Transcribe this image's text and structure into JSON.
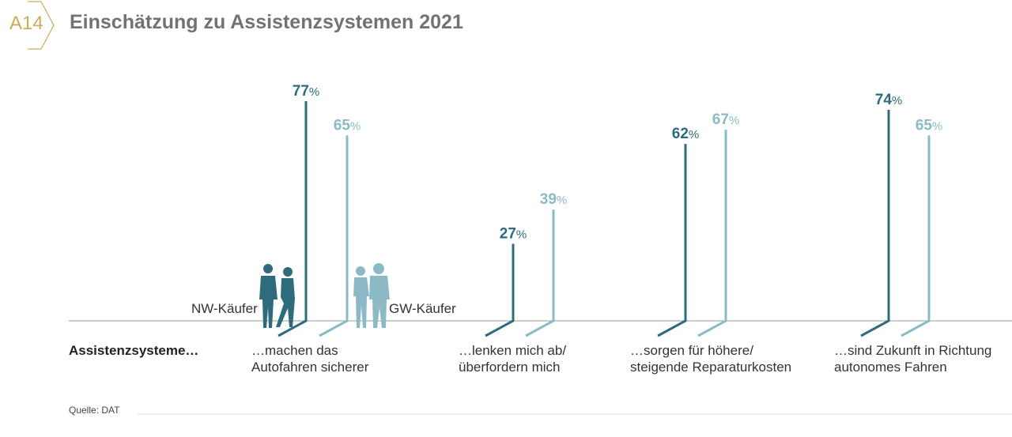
{
  "header": {
    "code": "A14",
    "title": "Einschätzung zu Assistenzsystemen 2021"
  },
  "row_label": "Assistenzsysteme…",
  "source": "Quelle: DAT",
  "chart_data": {
    "type": "bar",
    "title": "Einschätzung zu Assistenzsystemen 2021",
    "categories": [
      "…machen das Autofahren sicherer",
      "…lenken mich ab/ überfordern mich",
      "…sorgen für höhere/ steigende Reparaturkosten",
      "…sind Zukunft in Richtung autonomes Fahren"
    ],
    "category_lines": [
      [
        "…machen das",
        "Autofahren sicherer"
      ],
      [
        "…lenken mich ab/",
        "überfordern mich"
      ],
      [
        "…sorgen für höhere/",
        "steigende Reparaturkosten"
      ],
      [
        "…sind Zukunft in Richtung",
        "autonomes Fahren"
      ]
    ],
    "series": [
      {
        "name": "NW-Käufer",
        "color": "#2e6b7c",
        "values": [
          77,
          27,
          62,
          74
        ]
      },
      {
        "name": "GW-Käufer",
        "color": "#8bbac6",
        "values": [
          65,
          39,
          67,
          65
        ]
      }
    ],
    "unit": "%",
    "ylim": [
      0,
      100
    ]
  }
}
